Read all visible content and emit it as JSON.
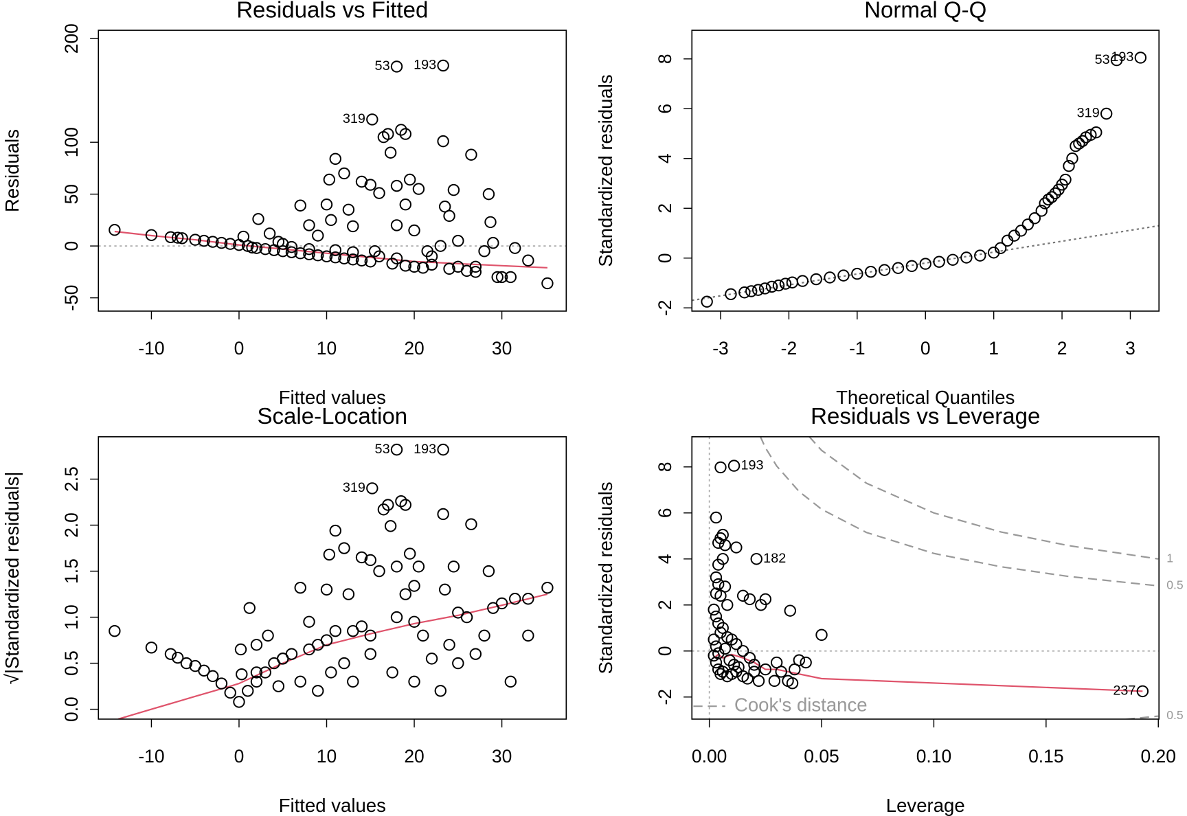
{
  "chart_data": [
    {
      "type": "scatter",
      "title": "Residuals vs Fitted",
      "xlabel": "Fitted values",
      "ylabel": "Residuals",
      "xlim": [
        -16.05,
        37.35
      ],
      "ylim": [
        -62.8,
        208
      ],
      "xticks": [
        -10,
        0,
        10,
        20,
        30
      ],
      "yticks": [
        -50,
        0,
        50,
        100,
        200
      ],
      "point_color": "#000000",
      "reference_line_y": 0,
      "x": [
        -14.2,
        -10,
        -7.8,
        -7,
        -6.5,
        -5,
        -4,
        -3,
        -2,
        -1,
        0,
        1,
        0.5,
        1.5,
        2,
        2.2,
        3,
        3.5,
        4,
        4.5,
        5,
        6,
        7,
        7,
        8,
        8,
        9,
        9,
        10,
        10,
        10.5,
        11,
        11,
        10.3,
        12,
        12,
        12.5,
        13,
        13,
        14,
        14,
        15,
        15,
        15.5,
        16,
        16.5,
        17,
        17.3,
        17.5,
        18,
        18,
        18.5,
        19,
        19,
        19,
        19.5,
        20,
        20,
        20.5,
        21,
        21.5,
        22,
        23,
        23.3,
        23.5,
        24,
        24,
        24.5,
        25,
        26,
        26.5,
        27,
        28,
        28.5,
        28.7,
        29,
        29.5,
        30,
        31,
        31.5,
        33,
        35.2,
        5,
        6,
        8,
        11,
        13,
        16,
        18,
        22,
        25,
        27
      ],
      "y": [
        15.5,
        10.5,
        8.5,
        8,
        7.5,
        6,
        5,
        4,
        3,
        2,
        1,
        0,
        9,
        -1.5,
        -2,
        26,
        -3,
        12,
        -4,
        4,
        -5,
        -6,
        39,
        -7,
        20,
        -8,
        10,
        -9,
        40,
        -10,
        25,
        -11,
        84,
        64,
        70,
        -12,
        35,
        -13,
        19,
        62,
        -14,
        59,
        -15,
        -5,
        51,
        105,
        108,
        90,
        -17,
        58,
        20,
        112,
        -19,
        108,
        40,
        64,
        -20,
        15,
        55,
        -21,
        -5,
        -18,
        0,
        101,
        38,
        -22,
        29,
        54,
        5,
        -24,
        88,
        -20,
        -5,
        50,
        23,
        3,
        -30,
        -30,
        -30,
        -2,
        -14,
        -36,
        2,
        -1,
        -3,
        -4,
        -6,
        -10,
        -12,
        -10,
        -20,
        -25
      ],
      "labeled_points": {
        "labels": [
          "53",
          "193",
          "319"
        ],
        "x": [
          18,
          23.3,
          15.2
        ],
        "y": [
          173,
          174,
          122
        ]
      },
      "smooth": {
        "color": "#DF536B",
        "x": [
          -14.2,
          -10,
          -5,
          0,
          5,
          10,
          15,
          20,
          25,
          30,
          35.2
        ],
        "y": [
          14,
          10,
          6,
          1,
          -3,
          -7,
          -11,
          -15,
          -17,
          -19,
          -21
        ]
      }
    },
    {
      "type": "scatter",
      "title": "Normal Q-Q",
      "xlabel": "Theoretical Quantiles",
      "ylabel": "Standardized residuals",
      "xlim": [
        -3.42,
        3.42
      ],
      "ylim": [
        -2.13,
        9.15
      ],
      "xticks": [
        -3,
        -2,
        -1,
        0,
        1,
        2,
        3
      ],
      "yticks": [
        -2,
        0,
        2,
        4,
        6,
        8
      ],
      "point_color": "#000000",
      "x": [
        -3.2,
        -2.85,
        -2.65,
        -2.55,
        -2.45,
        -2.35,
        -2.25,
        -2.15,
        -2.05,
        -1.95,
        -1.8,
        -1.6,
        -1.4,
        -1.2,
        -1.0,
        -0.8,
        -0.6,
        -0.4,
        -0.2,
        0,
        0.2,
        0.4,
        0.6,
        0.8,
        1.0,
        1.1,
        1.2,
        1.3,
        1.4,
        1.5,
        1.6,
        1.7,
        1.75,
        1.8,
        1.85,
        1.9,
        1.95,
        2.0,
        2.05,
        2.1,
        2.15,
        2.2,
        2.25,
        2.3,
        2.35,
        2.42,
        2.5
      ],
      "y": [
        -1.75,
        -1.45,
        -1.38,
        -1.33,
        -1.28,
        -1.22,
        -1.15,
        -1.1,
        -1.03,
        -0.98,
        -0.92,
        -0.85,
        -0.78,
        -0.7,
        -0.63,
        -0.55,
        -0.48,
        -0.4,
        -0.32,
        -0.23,
        -0.15,
        -0.07,
        0.02,
        0.1,
        0.22,
        0.4,
        0.7,
        0.9,
        1.1,
        1.35,
        1.6,
        1.9,
        2.2,
        2.35,
        2.45,
        2.6,
        2.75,
        2.95,
        3.15,
        3.7,
        4.0,
        4.5,
        4.6,
        4.7,
        4.85,
        4.95,
        5.05
      ],
      "labeled_points": {
        "labels": [
          "53",
          "193",
          "319"
        ],
        "x": [
          2.8,
          3.15,
          2.65
        ],
        "y": [
          7.95,
          8.05,
          5.8
        ]
      },
      "reference_line": {
        "x": [
          -3.42,
          3.42
        ],
        "y": [
          -1.7,
          1.3
        ]
      }
    },
    {
      "type": "scatter",
      "title": "Scale-Location",
      "xlabel": "Fitted values",
      "ylabel": "√|Standardized residuals|",
      "xlim": [
        -16.05,
        37.35
      ],
      "ylim": [
        -0.107,
        2.96
      ],
      "xticks": [
        -10,
        0,
        10,
        20,
        30
      ],
      "yticks": [
        {
          "value": 0,
          "label": "0.0"
        },
        0.5,
        {
          "value": 1,
          "label": "1.0"
        },
        1.5,
        {
          "value": 2,
          "label": "2.0"
        },
        2.5
      ],
      "point_color": "#000000",
      "x": [
        -14.2,
        -10,
        -7.8,
        -7,
        -6,
        -5,
        -4,
        -3,
        -2,
        -1,
        0,
        0.2,
        0.3,
        1,
        1.2,
        2,
        2,
        3,
        3.3,
        4,
        4.5,
        5,
        6,
        7,
        7,
        8,
        8,
        9,
        9,
        10,
        10,
        10.5,
        10.3,
        11,
        11,
        12,
        12,
        12.5,
        13,
        13,
        14,
        14,
        15,
        15,
        16,
        16.5,
        17,
        17.3,
        17.5,
        18,
        18,
        18.5,
        19,
        19,
        19.5,
        20,
        20,
        20.5,
        21,
        22,
        23,
        23.3,
        23.5,
        24,
        24.5,
        25,
        26,
        26.5,
        27,
        28,
        28.5,
        29,
        30,
        31,
        31.5,
        33,
        33,
        35.2,
        2,
        5,
        15,
        20,
        25
      ],
      "y": [
        0.85,
        0.67,
        0.6,
        0.56,
        0.5,
        0.47,
        0.42,
        0.36,
        0.28,
        0.18,
        0.08,
        0.65,
        0.38,
        0.2,
        1.1,
        0.3,
        0.7,
        0.4,
        0.8,
        0.5,
        0.25,
        0.55,
        0.6,
        1.32,
        0.3,
        0.95,
        0.65,
        0.7,
        0.2,
        1.3,
        0.75,
        0.4,
        1.68,
        1.94,
        0.85,
        1.75,
        0.5,
        1.25,
        0.85,
        0.3,
        1.65,
        0.9,
        1.62,
        0.6,
        1.5,
        2.17,
        2.22,
        1.99,
        0.4,
        1.55,
        1.0,
        2.26,
        2.22,
        1.25,
        1.69,
        1.34,
        0.3,
        1.55,
        0.8,
        0.55,
        0.2,
        2.12,
        1.3,
        0.7,
        1.55,
        0.5,
        1.0,
        2.01,
        0.6,
        0.8,
        1.5,
        1.1,
        1.15,
        0.3,
        1.2,
        1.2,
        0.8,
        1.32,
        0.4,
        0.55,
        0.8,
        0.95,
        1.05
      ],
      "labeled_points": {
        "labels": [
          "53",
          "193",
          "319"
        ],
        "x": [
          18,
          23.3,
          15.2
        ],
        "y": [
          2.82,
          2.82,
          2.4
        ]
      },
      "smooth": {
        "color": "#DF536B",
        "x": [
          -13.8,
          -10,
          -5,
          -1,
          0,
          5,
          10,
          15,
          20,
          25,
          30,
          35.2
        ],
        "y": [
          -0.107,
          0.0,
          0.14,
          0.25,
          0.28,
          0.5,
          0.7,
          0.82,
          0.93,
          1.02,
          1.13,
          1.25
        ]
      }
    },
    {
      "type": "scatter",
      "title": "Residuals vs Leverage",
      "xlabel": "Leverage",
      "ylabel": "Standardized residuals",
      "xlim": [
        -0.00776,
        0.2003
      ],
      "ylim": [
        -2.96,
        9.31
      ],
      "xticks": [
        {
          "value": 0,
          "label": "0.00"
        },
        0.05,
        {
          "value": 0.1,
          "label": "0.10"
        },
        0.15,
        {
          "value": 0.2,
          "label": "0.20"
        }
      ],
      "yticks": [
        -2,
        0,
        2,
        4,
        6,
        8
      ],
      "point_color": "#000000",
      "reference_line_y": 0,
      "reference_line_x": 0,
      "x": [
        0.005,
        0.003,
        0.004,
        0.005,
        0.006,
        0.007,
        0.012,
        0.003,
        0.004,
        0.006,
        0.004,
        0.007,
        0.003,
        0.005,
        0.008,
        0.015,
        0.018,
        0.023,
        0.025,
        0.036,
        0.05,
        0.002,
        0.003,
        0.004,
        0.006,
        0.008,
        0.01,
        0.012,
        0.015,
        0.018,
        0.02,
        0.025,
        0.03,
        0.032,
        0.035,
        0.037,
        0.038,
        0.04,
        0.043,
        0.002,
        0.003,
        0.004,
        0.005,
        0.006,
        0.008,
        0.01,
        0.012,
        0.015,
        0.017,
        0.02,
        0.022,
        0.029,
        0.002,
        0.003,
        0.004,
        0.005,
        0.007,
        0.009,
        0.011,
        0.013
      ],
      "y": [
        7.98,
        5.8,
        4.7,
        4.9,
        5.05,
        4.6,
        4.5,
        3.2,
        3.75,
        4.0,
        2.9,
        2.8,
        2.5,
        2.4,
        2.0,
        2.4,
        2.25,
        2.0,
        2.25,
        1.75,
        0.7,
        1.8,
        1.5,
        1.2,
        1.0,
        0.6,
        0.5,
        0.3,
        0.0,
        -0.3,
        -0.6,
        -0.8,
        -0.5,
        -0.9,
        -1.3,
        -1.4,
        -0.8,
        -0.4,
        -0.5,
        -0.2,
        -0.5,
        -0.8,
        -1.0,
        -0.9,
        -1.1,
        -1.0,
        -0.9,
        -1.1,
        -1.2,
        -0.9,
        -1.3,
        -1.3,
        0.5,
        0.2,
        -0.1,
        0.8,
        0.1,
        -0.4,
        -0.6,
        -0.7
      ],
      "labeled_points": {
        "labels": [
          "193",
          "182",
          "237"
        ],
        "x": [
          0.011,
          0.021,
          0.193
        ],
        "y": [
          8.05,
          4.0,
          -1.75
        ]
      },
      "smooth": {
        "color": "#DF536B",
        "x": [
          0.002,
          0.004,
          0.006,
          0.01,
          0.015,
          0.02,
          0.025,
          0.03,
          0.035,
          0.05,
          0.193
        ],
        "y": [
          -0.3,
          -0.15,
          -0.3,
          -0.15,
          -0.3,
          -0.5,
          -0.8,
          -0.8,
          -0.9,
          -1.2,
          -1.75
        ]
      },
      "cooks_contours": [
        {
          "label": "1",
          "x": [
            0.03,
            0.04,
            0.05,
            0.07,
            0.1,
            0.13,
            0.16,
            0.2
          ],
          "y": [
            11.37,
            9.8,
            8.72,
            7.29,
            6,
            5.17,
            4.58,
            4
          ]
        },
        {
          "label": "0.5",
          "x": [
            0.02,
            0.025,
            0.03,
            0.04,
            0.05,
            0.07,
            0.1,
            0.13,
            0.16,
            0.2
          ],
          "y": [
            9.9,
            8.83,
            8.04,
            6.93,
            6.16,
            5.15,
            4.24,
            3.66,
            3.24,
            2.83
          ]
        },
        {
          "label": "0.5",
          "x": [
            0.16,
            0.18,
            0.2
          ],
          "y": [
            -3.24,
            -3.02,
            -2.83
          ]
        }
      ],
      "legend_label": "Cook's distance"
    }
  ]
}
